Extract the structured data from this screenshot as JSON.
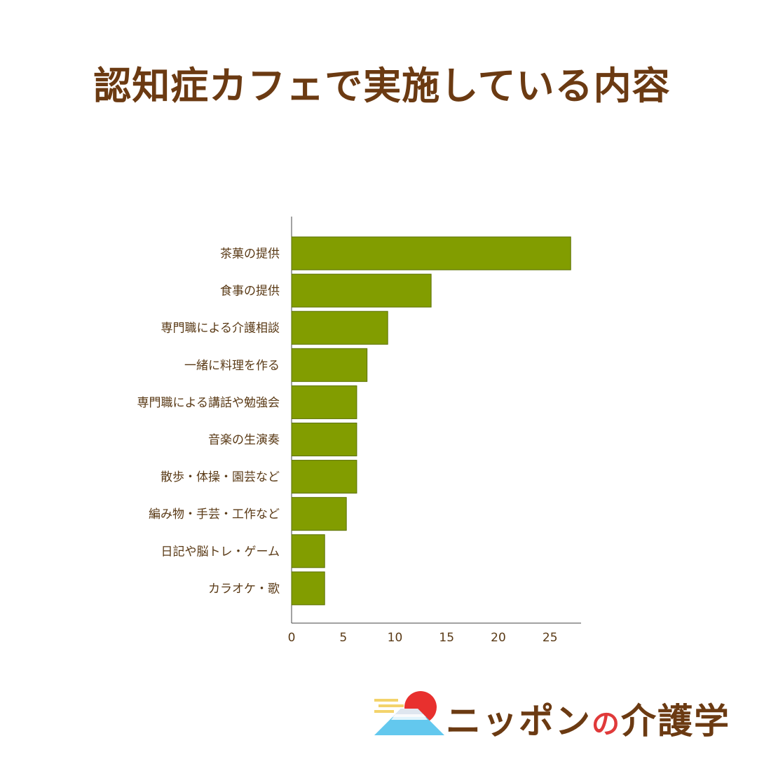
{
  "title": "認知症カフェで実施している内容",
  "colors": {
    "bar": "#829d00",
    "bar_border": "#5a6f00",
    "text": "#5a3a16",
    "title": "#6b3a12"
  },
  "chart_data": {
    "type": "bar",
    "orientation": "horizontal",
    "categories": [
      "茶菓の提供",
      "食事の提供",
      "専門職による介護相談",
      "一緒に料理を作る",
      "専門職による講話や勉強会",
      "音楽の生演奏",
      "散歩・体操・園芸など",
      "編み物・手芸・工作など",
      "日記や脳トレ・ゲーム",
      "カラオケ・歌"
    ],
    "values": [
      27,
      13.5,
      9.3,
      7.3,
      6.3,
      6.3,
      6.3,
      5.3,
      3.2,
      3.2
    ],
    "xlim": [
      0,
      28
    ],
    "xticks": [
      "0",
      "5",
      "10",
      "15",
      "20",
      "25"
    ],
    "grid": false,
    "title": "",
    "xlabel": "",
    "ylabel": ""
  },
  "logo": {
    "text_main": "ニッポン",
    "text_no": "の",
    "text_tail": "介護学",
    "icon": "mount-fuji-sun-icon"
  }
}
